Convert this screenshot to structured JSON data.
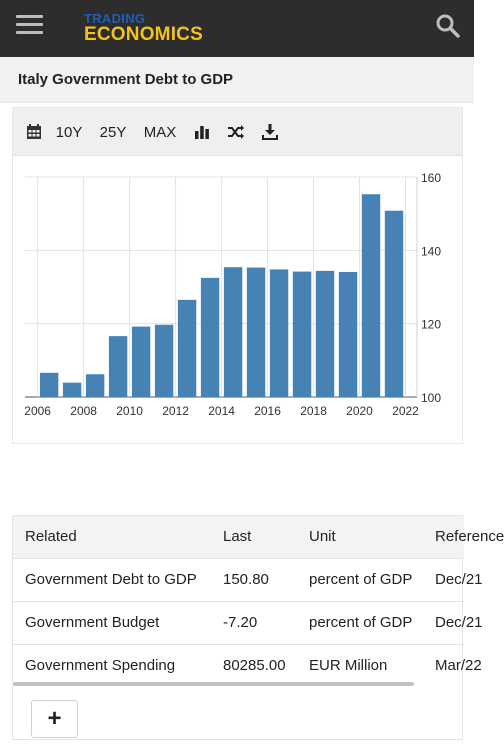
{
  "header": {
    "logo_top": "TRADING",
    "logo_bottom": "ECONOMICS",
    "menu_icon": "hamburger-menu-icon",
    "search_icon": "search-icon",
    "bg_color": "#2d2d2d",
    "logo_top_color": "#1f5fb5",
    "logo_bottom_color": "#f0c419"
  },
  "page": {
    "title": "Italy Government Debt to GDP"
  },
  "toolbar": {
    "calendar_icon": "calendar-icon",
    "range_10y": "10Y",
    "range_25y": "25Y",
    "range_max": "MAX",
    "bar_chart_icon": "bar-chart-icon",
    "shuffle_icon": "shuffle-icon",
    "download_icon": "download-icon"
  },
  "chart_data": {
    "type": "bar",
    "bar_color": "#4682b4",
    "years": [
      2006,
      2007,
      2008,
      2009,
      2010,
      2011,
      2012,
      2013,
      2014,
      2015,
      2016,
      2017,
      2018,
      2019,
      2020,
      2021
    ],
    "values": [
      106.6,
      103.9,
      106.2,
      116.6,
      119.2,
      119.7,
      126.5,
      132.5,
      135.4,
      135.3,
      134.8,
      134.2,
      134.4,
      134.1,
      155.3,
      150.8
    ],
    "x_ticks": [
      "2006",
      "2008",
      "2010",
      "2012",
      "2014",
      "2016",
      "2018",
      "2020",
      "2022"
    ],
    "y_ticks": [
      "100",
      "120",
      "140",
      "160"
    ],
    "ylim": [
      100,
      160
    ],
    "y_axis_position": "right",
    "grid": true
  },
  "related": {
    "columns": [
      "Related",
      "Last",
      "Unit",
      "Reference"
    ],
    "rows": [
      [
        "Government Debt to GDP",
        "150.80",
        "percent of GDP",
        "Dec/21"
      ],
      [
        "Government Budget",
        "-7.20",
        "percent of GDP",
        "Dec/21"
      ],
      [
        "Government Spending",
        "80285.00",
        "EUR Million",
        "Mar/22"
      ]
    ],
    "add_label": "+"
  }
}
